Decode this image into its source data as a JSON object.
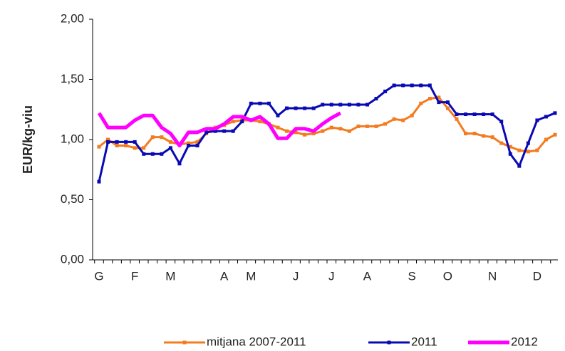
{
  "chart_data": {
    "type": "line",
    "y_label": "EUR/kg-viu",
    "categories": [
      "G",
      null,
      null,
      null,
      "F",
      null,
      null,
      null,
      "M",
      null,
      null,
      null,
      null,
      null,
      "A",
      null,
      null,
      "M",
      null,
      null,
      null,
      null,
      "J",
      null,
      null,
      null,
      "J",
      null,
      null,
      null,
      "A",
      null,
      null,
      null,
      null,
      "S",
      null,
      null,
      null,
      "O",
      null,
      null,
      null,
      null,
      "N",
      null,
      null,
      null,
      null,
      "D",
      null,
      null
    ],
    "ylim": [
      0,
      2
    ],
    "yticks": [
      {
        "value": 0,
        "label": "0,00"
      },
      {
        "value": 0.5,
        "label": "0,50"
      },
      {
        "value": 1,
        "label": "1,00"
      },
      {
        "value": 1.5,
        "label": "1,50"
      },
      {
        "value": 2,
        "label": "2,00"
      }
    ],
    "grid": false,
    "legend": "bottom",
    "series": [
      {
        "name": "mitjana 2007-2011",
        "color": "#f47b20",
        "width": 3,
        "markers": true,
        "values": [
          0.94,
          1.0,
          0.95,
          0.95,
          0.93,
          0.93,
          1.02,
          1.02,
          0.98,
          0.96,
          0.97,
          0.98,
          1.05,
          1.1,
          1.12,
          1.15,
          1.16,
          1.16,
          1.15,
          1.13,
          1.1,
          1.07,
          1.06,
          1.04,
          1.05,
          1.07,
          1.1,
          1.09,
          1.07,
          1.11,
          1.11,
          1.11,
          1.13,
          1.17,
          1.16,
          1.2,
          1.3,
          1.34,
          1.35,
          1.26,
          1.17,
          1.05,
          1.05,
          1.03,
          1.02,
          0.97,
          0.94,
          0.91,
          0.9,
          0.91,
          1.0,
          1.04
        ]
      },
      {
        "name": "2011",
        "color": "#0a0ab4",
        "width": 3,
        "markers": true,
        "values": [
          0.65,
          0.98,
          0.98,
          0.98,
          0.98,
          0.88,
          0.88,
          0.88,
          0.93,
          0.8,
          0.95,
          0.95,
          1.06,
          1.07,
          1.07,
          1.07,
          1.15,
          1.3,
          1.3,
          1.3,
          1.2,
          1.26,
          1.26,
          1.26,
          1.26,
          1.29,
          1.29,
          1.29,
          1.29,
          1.29,
          1.29,
          1.34,
          1.4,
          1.45,
          1.45,
          1.45,
          1.45,
          1.45,
          1.31,
          1.31,
          1.21,
          1.21,
          1.21,
          1.21,
          1.21,
          1.15,
          0.88,
          0.78,
          0.97,
          1.16,
          1.19,
          1.22
        ]
      },
      {
        "name": "2012",
        "color": "#ff00ff",
        "width": 5,
        "markers": false,
        "values": [
          1.22,
          1.1,
          1.1,
          1.1,
          1.16,
          1.2,
          1.2,
          1.1,
          1.05,
          0.95,
          1.06,
          1.06,
          1.09,
          1.09,
          1.13,
          1.19,
          1.19,
          1.16,
          1.19,
          1.13,
          1.01,
          1.01,
          1.09,
          1.09,
          1.07,
          1.13,
          1.18,
          1.22,
          null,
          null,
          null,
          null,
          null,
          null,
          null,
          null,
          null,
          null,
          null,
          null,
          null,
          null,
          null,
          null,
          null,
          null,
          null,
          null,
          null,
          null,
          null,
          null
        ]
      }
    ]
  }
}
